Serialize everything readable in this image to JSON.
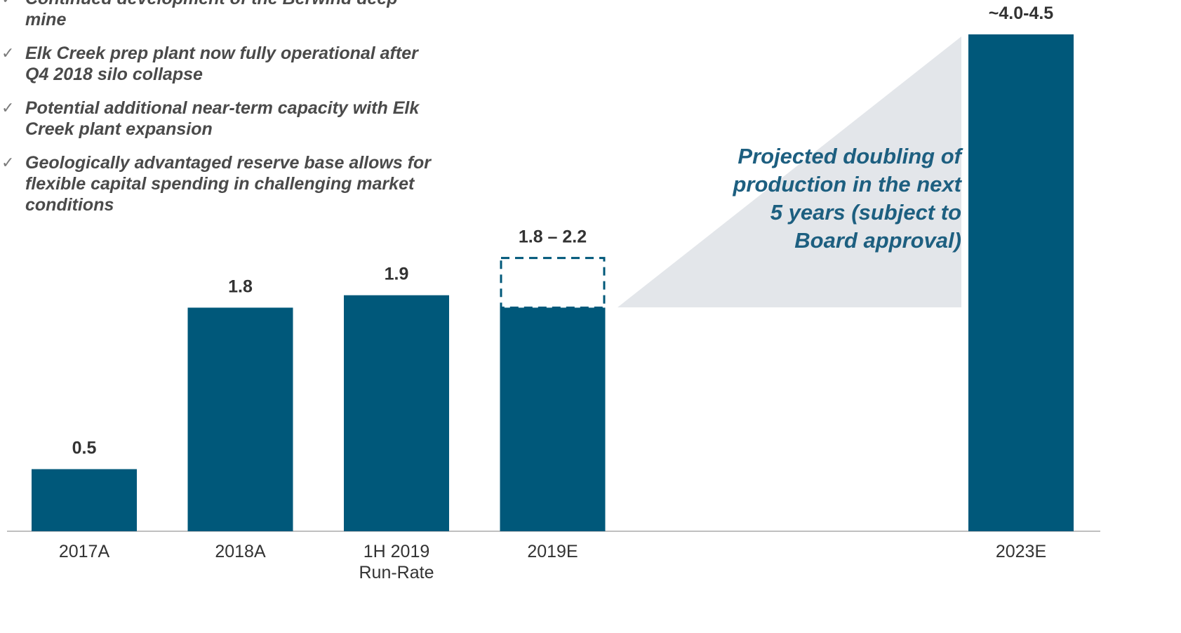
{
  "chart_data": {
    "type": "bar",
    "categories": [
      "2017A",
      "2018A",
      "1H 2019\nRun-Rate",
      "2019E",
      null,
      null,
      "2023E"
    ],
    "values": [
      0.5,
      1.8,
      1.9,
      1.8,
      null,
      null,
      4.0
    ],
    "range_high": [
      null,
      null,
      null,
      2.2,
      null,
      null,
      null
    ],
    "value_labels": [
      "0.5",
      "1.8",
      "1.9",
      "1.8 – 2.2",
      null,
      null,
      "~4.0-4.5"
    ],
    "color": "#00587a",
    "bullets": [
      "Continued development of the Berwind deep mine",
      "Elk Creek prep plant now fully operational after Q4 2018 silo collapse",
      "Potential additional near-term capacity with Elk Creek plant expansion",
      "Geologically advantaged reserve base allows for flexible capital spending in challenging market conditions"
    ],
    "annotation": "Projected doubling of production in the next 5 years (subject to Board approval)"
  }
}
